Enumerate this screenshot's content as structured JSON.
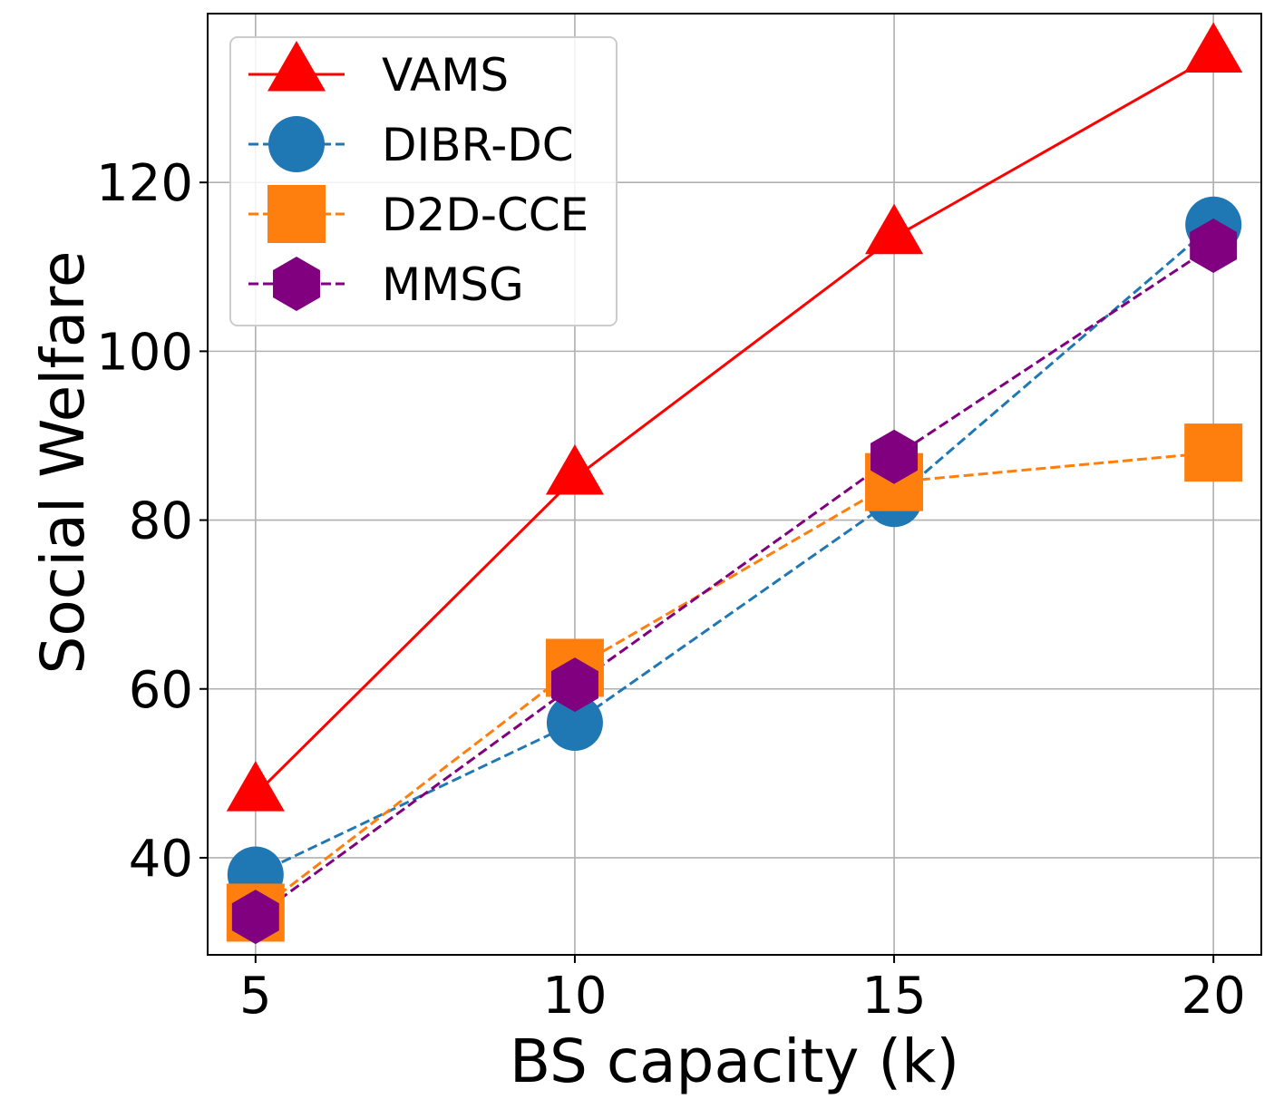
{
  "chart_data": {
    "type": "line",
    "title": "",
    "xlabel": "BS capacity (k)",
    "ylabel": "Social Welfare",
    "x": [
      5,
      10,
      15,
      20
    ],
    "xticks": [
      5,
      10,
      15,
      20
    ],
    "yticks": [
      40,
      60,
      80,
      100,
      120
    ],
    "xlim": [
      4.25,
      20.75
    ],
    "ylim": [
      28.5,
      140
    ],
    "grid": true,
    "legend_position": "top-left",
    "series": [
      {
        "name": "VAMS",
        "values": [
          47.5,
          85,
          113.5,
          135
        ],
        "color": "#ff0000",
        "linestyle": "solid",
        "marker": "triangle"
      },
      {
        "name": "DIBR-DC",
        "values": [
          38,
          56,
          82.5,
          115
        ],
        "color": "#1f77b4",
        "linestyle": "dashed",
        "marker": "circle"
      },
      {
        "name": "D2D-CCE",
        "values": [
          33.5,
          62.5,
          84.5,
          88
        ],
        "color": "#ff7f0e",
        "linestyle": "dashed",
        "marker": "square"
      },
      {
        "name": "MMSG",
        "values": [
          33,
          60.5,
          87.5,
          112.5
        ],
        "color": "#800080",
        "linestyle": "dashed",
        "marker": "hexagon"
      }
    ]
  }
}
